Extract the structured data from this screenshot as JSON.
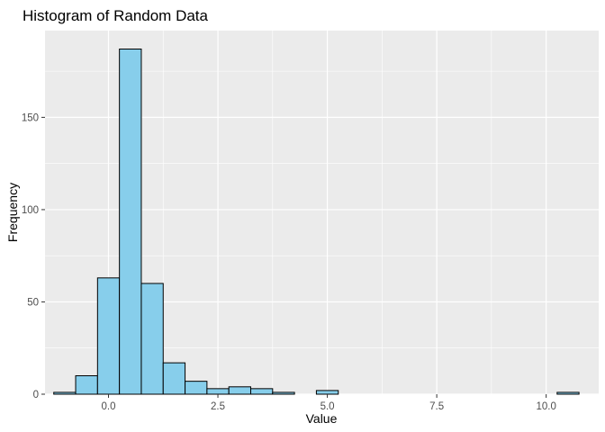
{
  "chart_data": {
    "type": "histogram",
    "title": "Histogram of Random Data",
    "xlabel": "Value",
    "ylabel": "Frequency",
    "xlim": [
      -1.45,
      11.2
    ],
    "ylim": [
      0,
      197
    ],
    "grid": true,
    "x_ticks": [
      0.0,
      2.5,
      5.0,
      7.5,
      10.0
    ],
    "x_tick_labels": [
      "0.0",
      "2.5",
      "5.0",
      "7.5",
      "10.0"
    ],
    "y_ticks": [
      0,
      50,
      100,
      150
    ],
    "y_tick_labels": [
      "0",
      "50",
      "100",
      "150"
    ],
    "bin_width": 0.5,
    "bin_starts": [
      -1.25,
      -0.75,
      -0.25,
      0.25,
      0.75,
      1.25,
      1.75,
      2.25,
      2.75,
      3.25,
      3.75,
      4.25,
      4.75,
      5.25,
      5.75,
      6.25,
      6.75,
      7.25,
      7.75,
      8.25,
      8.75,
      9.25,
      9.75,
      10.25
    ],
    "counts": [
      1,
      10,
      63,
      187,
      60,
      17,
      7,
      3,
      4,
      3,
      1,
      0,
      2,
      0,
      0,
      0,
      0,
      0,
      0,
      0,
      0,
      0,
      0,
      1
    ],
    "colors": {
      "fill": "#87CEEB",
      "stroke": "#000000",
      "panel": "#EBEBEB",
      "grid": "#FFFFFF"
    }
  }
}
